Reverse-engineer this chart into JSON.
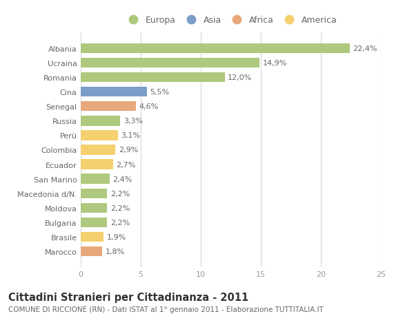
{
  "countries": [
    "Albania",
    "Ucraina",
    "Romania",
    "Cina",
    "Senegal",
    "Russia",
    "Perù",
    "Colombia",
    "Ecuador",
    "San Marino",
    "Macedonia d/N.",
    "Moldova",
    "Bulgaria",
    "Brasile",
    "Marocco"
  ],
  "values": [
    22.4,
    14.9,
    12.0,
    5.5,
    4.6,
    3.3,
    3.1,
    2.9,
    2.7,
    2.4,
    2.2,
    2.2,
    2.2,
    1.9,
    1.8
  ],
  "labels": [
    "22,4%",
    "14,9%",
    "12,0%",
    "5,5%",
    "4,6%",
    "3,3%",
    "3,1%",
    "2,9%",
    "2,7%",
    "2,4%",
    "2,2%",
    "2,2%",
    "2,2%",
    "1,9%",
    "1,8%"
  ],
  "continents": [
    "Europa",
    "Europa",
    "Europa",
    "Asia",
    "Africa",
    "Europa",
    "America",
    "America",
    "America",
    "Europa",
    "Europa",
    "Europa",
    "Europa",
    "America",
    "Africa"
  ],
  "colors": {
    "Europa": "#aec97e",
    "Asia": "#7b9ec9",
    "Africa": "#e8a87c",
    "America": "#f5d06e"
  },
  "xlim": [
    0,
    25
  ],
  "xticks": [
    0,
    5,
    10,
    15,
    20,
    25
  ],
  "title_main": "Cittadini Stranieri per Cittadinanza - 2011",
  "title_sub": "COMUNE DI RICCIONE (RN) - Dati ISTAT al 1° gennaio 2011 - Elaborazione TUTTITALIA.IT",
  "bg_color": "#ffffff",
  "grid_color": "#d8d8d8",
  "bar_height": 0.68,
  "label_fontsize": 8,
  "tick_fontsize": 8,
  "title_fontsize": 10.5,
  "subtitle_fontsize": 7.5,
  "legend_order": [
    "Europa",
    "Asia",
    "Africa",
    "America"
  ]
}
